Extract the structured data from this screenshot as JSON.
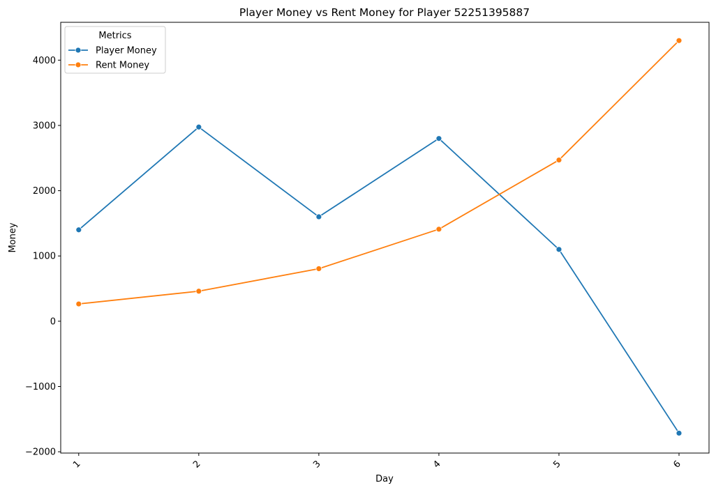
{
  "chart_data": {
    "type": "line",
    "title": "Player Money vs Rent Money for Player 52251395887",
    "xlabel": "Day",
    "ylabel": "Money",
    "x": [
      1,
      2,
      3,
      4,
      5,
      6
    ],
    "x_tick_labels": [
      "1",
      "2",
      "3",
      "4",
      "5",
      "6"
    ],
    "y_ticks": [
      -2000,
      -1000,
      0,
      1000,
      2000,
      3000,
      4000
    ],
    "y_tick_labels": [
      "−2000",
      "−1000",
      "0",
      "1000",
      "2000",
      "3000",
      "4000"
    ],
    "ylim": [
      -2020,
      4580
    ],
    "xlim": [
      0.85,
      6.25
    ],
    "grid": false,
    "legend": {
      "title": "Metrics",
      "position": "top-left"
    },
    "series": [
      {
        "name": "Player Money",
        "color": "#1f77b4",
        "marker": "circle",
        "values": [
          1400,
          2975,
          1600,
          2800,
          1100,
          -1715
        ]
      },
      {
        "name": "Rent Money",
        "color": "#ff7f0e",
        "marker": "circle",
        "values": [
          265,
          460,
          805,
          1410,
          2470,
          4300
        ]
      }
    ]
  }
}
